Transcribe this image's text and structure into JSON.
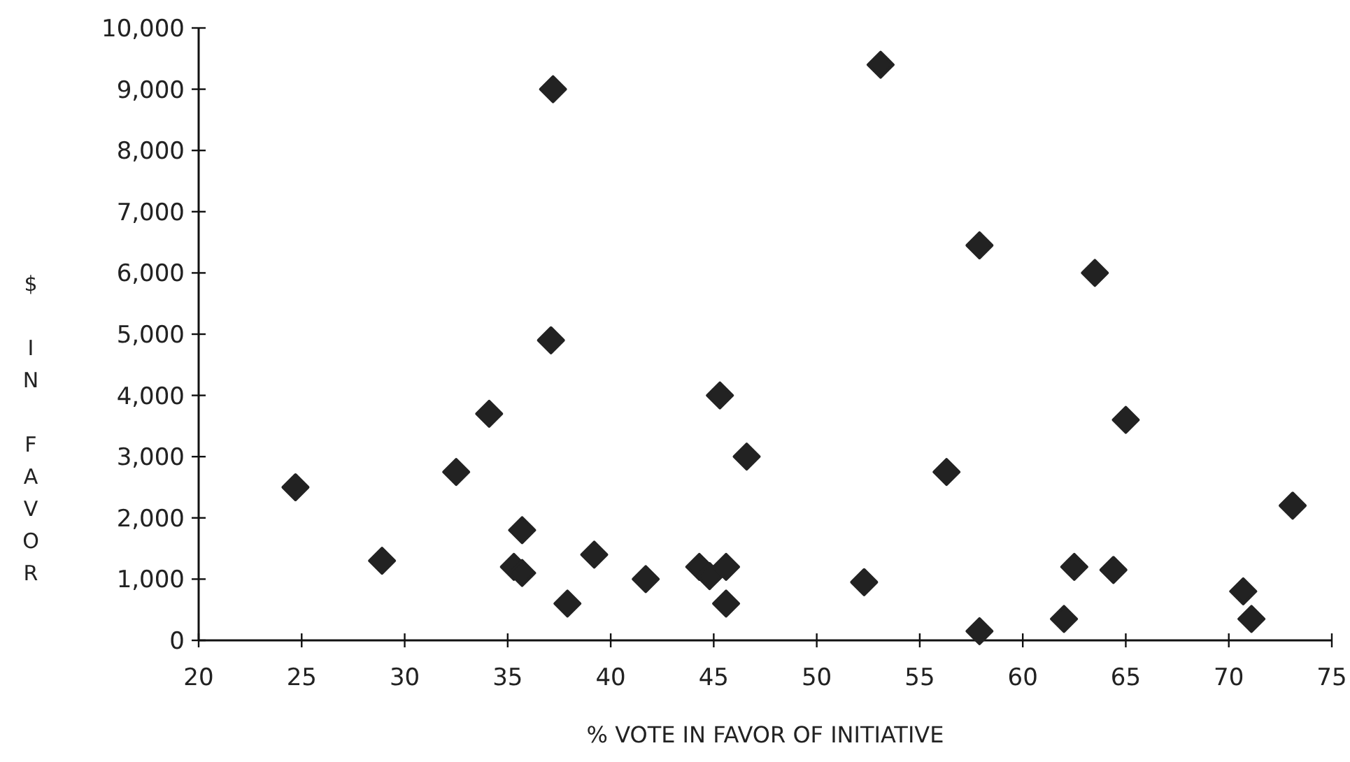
{
  "chart_data": {
    "type": "scatter",
    "xlabel": "% VOTE IN FAVOR OF INITIATIVE",
    "ylabel": "$ IN FAVOR",
    "marker": "diamond",
    "grid": false,
    "xlim": [
      20,
      75
    ],
    "xticks": [
      20,
      25,
      30,
      35,
      40,
      45,
      50,
      55,
      60,
      65,
      70,
      75
    ],
    "ylim": [
      0,
      10000
    ],
    "yticks": [
      {
        "value": 0,
        "label": "0"
      },
      {
        "value": 1000,
        "label": "1,000"
      },
      {
        "value": 2000,
        "label": "2,000"
      },
      {
        "value": 3000,
        "label": "3,000"
      },
      {
        "value": 4000,
        "label": "4,000"
      },
      {
        "value": 5000,
        "label": "5,000"
      },
      {
        "value": 6000,
        "label": "6,000"
      },
      {
        "value": 7000,
        "label": "7,000"
      },
      {
        "value": 8000,
        "label": "8,000"
      },
      {
        "value": 9000,
        "label": "9,000"
      },
      {
        "value": 10000,
        "label": "10,000"
      }
    ],
    "series": [
      {
        "color": "#222222",
        "x": [
          24.7,
          28.9,
          32.5,
          34.1,
          37.2,
          37.1,
          35.7,
          35.3,
          35.7,
          37.9,
          39.2,
          41.7,
          44.3,
          44.8,
          45.6,
          45.6,
          45.3,
          46.6,
          53.1,
          56.3,
          57.9,
          57.9,
          63.5,
          65.0,
          52.3,
          62.5,
          64.4,
          62.0,
          70.7,
          71.1,
          73.1
        ],
        "values": [
          2500,
          1300,
          2750,
          3700,
          9000,
          4900,
          1800,
          1200,
          1100,
          600,
          1400,
          1000,
          1200,
          1050,
          1200,
          600,
          4000,
          3000,
          9400,
          2750,
          6450,
          150,
          6000,
          3600,
          950,
          1200,
          1150,
          350,
          800,
          350,
          2200
        ]
      }
    ]
  }
}
